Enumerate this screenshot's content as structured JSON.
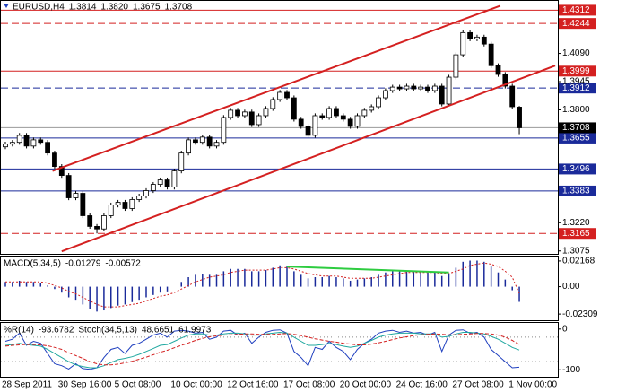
{
  "chart_data": [
    {
      "type": "candlestick",
      "title": "EURUSD,H4",
      "header_values": [
        "1.3814",
        "1.3820",
        "1.3675",
        "1.3708"
      ],
      "categories": [
        "28 Sep 2011",
        null,
        null,
        null,
        null,
        null,
        null,
        null,
        "30 Sep 16:00",
        null,
        null,
        null,
        null,
        null,
        null,
        null,
        "5 Oct 08:00",
        null,
        null,
        null,
        null,
        null,
        null,
        null,
        "10 Oct 00:00",
        null,
        null,
        null,
        null,
        null,
        null,
        null,
        "12 Oct 16:00",
        null,
        null,
        null,
        null,
        null,
        null,
        null,
        "17 Oct 08:00",
        null,
        null,
        null,
        null,
        null,
        null,
        null,
        "20 Oct 00:00",
        null,
        null,
        null,
        null,
        null,
        null,
        null,
        "24 Oct 16:00",
        null,
        null,
        null,
        null,
        null,
        null,
        null,
        "27 Oct 08:00",
        null,
        null,
        null,
        null,
        null,
        null,
        null,
        "1 Nov 00:00",
        null
      ],
      "open": [
        1.361,
        1.3624,
        1.3633,
        1.3669,
        1.3614,
        1.3646,
        1.3633,
        1.3578,
        1.3509,
        1.3463,
        1.3348,
        1.3371,
        1.3256,
        1.3201,
        1.3188,
        1.3256,
        1.3311,
        1.3325,
        1.3293,
        1.3339,
        1.3357,
        1.3385,
        1.3417,
        1.344,
        1.3403,
        1.3486,
        1.3578,
        1.3646,
        1.3633,
        1.366,
        1.3614,
        1.3633,
        1.3761,
        1.3798,
        1.377,
        1.3789,
        1.3724,
        1.377,
        1.3807,
        1.3853,
        1.389,
        1.3862,
        1.3752,
        1.3715,
        1.3669,
        1.377,
        1.3761,
        1.3807,
        1.377,
        1.3752,
        1.3715,
        1.377,
        1.3798,
        1.3816,
        1.3862,
        1.3899,
        1.3917,
        1.3908,
        1.3922,
        1.3908,
        1.3917,
        1.3899,
        1.3922,
        1.383,
        1.3968,
        1.4083,
        1.4197,
        1.4165,
        1.4174,
        1.4138,
        1.4027,
        1.3982,
        1.3922,
        1.3814
      ],
      "high": [
        1.3636,
        1.3645,
        1.3681,
        1.3681,
        1.3658,
        1.3658,
        1.3645,
        1.359,
        1.3521,
        1.3475,
        1.3383,
        1.3383,
        1.3268,
        1.3213,
        1.3268,
        1.3323,
        1.3337,
        1.3337,
        1.3351,
        1.3369,
        1.3397,
        1.3429,
        1.3452,
        1.3452,
        1.3498,
        1.359,
        1.3658,
        1.3658,
        1.3672,
        1.3672,
        1.3645,
        1.3773,
        1.381,
        1.381,
        1.3801,
        1.3801,
        1.3782,
        1.3819,
        1.3865,
        1.3902,
        1.3902,
        1.3874,
        1.3764,
        1.3727,
        1.3782,
        1.3782,
        1.3819,
        1.3819,
        1.3782,
        1.3764,
        1.3782,
        1.381,
        1.3828,
        1.3874,
        1.3911,
        1.3929,
        1.3929,
        1.3934,
        1.3934,
        1.3929,
        1.3929,
        1.3934,
        1.3934,
        1.398,
        1.4095,
        1.4209,
        1.4209,
        1.4186,
        1.4186,
        1.415,
        1.4039,
        1.3994,
        1.3934,
        1.382
      ],
      "low": [
        1.3598,
        1.3612,
        1.3621,
        1.3602,
        1.3602,
        1.3621,
        1.3566,
        1.3497,
        1.3451,
        1.3336,
        1.3336,
        1.3244,
        1.3189,
        1.3165,
        1.3176,
        1.3244,
        1.3299,
        1.3281,
        1.3281,
        1.3327,
        1.3345,
        1.3373,
        1.3405,
        1.3391,
        1.3391,
        1.3474,
        1.3566,
        1.3621,
        1.3621,
        1.3602,
        1.3602,
        1.3621,
        1.3749,
        1.3758,
        1.3758,
        1.3712,
        1.3712,
        1.3758,
        1.3795,
        1.3841,
        1.385,
        1.374,
        1.3703,
        1.3657,
        1.3657,
        1.3749,
        1.3749,
        1.3758,
        1.374,
        1.3703,
        1.3703,
        1.3758,
        1.3786,
        1.3804,
        1.385,
        1.3887,
        1.3896,
        1.3896,
        1.3896,
        1.3896,
        1.3887,
        1.3887,
        1.3818,
        1.3818,
        1.3956,
        1.4071,
        1.4153,
        1.4153,
        1.4126,
        1.4015,
        1.397,
        1.391,
        1.3804,
        1.3675
      ],
      "close": [
        1.3624,
        1.3633,
        1.3669,
        1.3614,
        1.3646,
        1.3633,
        1.3578,
        1.3509,
        1.3463,
        1.3348,
        1.3371,
        1.3256,
        1.3201,
        1.3188,
        1.3256,
        1.3311,
        1.3325,
        1.3293,
        1.3339,
        1.3357,
        1.3385,
        1.3417,
        1.344,
        1.3403,
        1.3486,
        1.3578,
        1.3646,
        1.3633,
        1.366,
        1.3614,
        1.3633,
        1.3761,
        1.3798,
        1.377,
        1.3789,
        1.3724,
        1.377,
        1.3807,
        1.3853,
        1.389,
        1.3862,
        1.3752,
        1.3715,
        1.3669,
        1.377,
        1.3761,
        1.3807,
        1.377,
        1.3752,
        1.3715,
        1.377,
        1.3798,
        1.3816,
        1.3862,
        1.3899,
        1.3917,
        1.3908,
        1.3922,
        1.3908,
        1.3917,
        1.3899,
        1.3922,
        1.383,
        1.3968,
        1.4083,
        1.4197,
        1.4165,
        1.4174,
        1.4138,
        1.4027,
        1.3982,
        1.3922,
        1.3816,
        1.3708
      ],
      "bull_color": "#ffffff",
      "bear_color": "#000000",
      "ylim": [
        1.306,
        1.436
      ],
      "yticks": [
        {
          "value": 1.409,
          "label": "1.4090"
        },
        {
          "value": 1.3945,
          "label": "1.3945"
        },
        {
          "value": 1.38,
          "label": "1.3800"
        },
        {
          "value": 1.322,
          "label": "1.3220"
        },
        {
          "value": 1.3075,
          "label": "1.3075"
        }
      ],
      "levels": [
        {
          "value": 1.4312,
          "label": "1.4312",
          "color": "#d42020",
          "dashed": false
        },
        {
          "value": 1.4244,
          "label": "1.4244",
          "color": "#d42020",
          "dashed": true
        },
        {
          "value": 1.3999,
          "label": "1.3999",
          "color": "#d42020",
          "dashed": false
        },
        {
          "value": 1.3912,
          "label": "1.3912",
          "color": "#1a2a9a",
          "dashed": true
        },
        {
          "value": 1.3655,
          "label": "1.3655",
          "color": "#1a2a9a",
          "dashed": false
        },
        {
          "value": 1.3496,
          "label": "1.3496",
          "color": "#1a2a9a",
          "dashed": false
        },
        {
          "value": 1.3383,
          "label": "1.3383",
          "color": "#1a2a9a",
          "dashed": false
        },
        {
          "value": 1.3165,
          "label": "1.3165",
          "color": "#d42020",
          "dashed": true
        }
      ],
      "current_price": {
        "value": 1.3708,
        "label": "1.3708",
        "color": "#000000"
      },
      "trendlines": [
        {
          "color": "#d42020",
          "points": [
            [
              6.7,
              1.3486
            ],
            [
              70.3,
              1.4335
            ]
          ]
        },
        {
          "color": "#d42020",
          "points": [
            [
              8,
              1.3073
            ],
            [
              78.1,
              1.4027
            ]
          ]
        }
      ]
    },
    {
      "type": "macd",
      "title": "MACD(5,34,5)",
      "series": [
        {
          "color": "#1a2a9a",
          "style": "histogram",
          "values": [
            0.004,
            0.004,
            0.005,
            0.004,
            0.004,
            0.003,
            0.001,
            -0.002,
            -0.005,
            -0.009,
            -0.011,
            -0.015,
            -0.019,
            -0.021,
            -0.02,
            -0.018,
            -0.016,
            -0.015,
            -0.013,
            -0.011,
            -0.009,
            -0.007,
            -0.005,
            -0.004,
            0.0,
            0.004,
            0.008,
            0.01,
            0.011,
            0.01,
            0.01,
            0.013,
            0.015,
            0.015,
            0.015,
            0.013,
            0.013,
            0.014,
            0.016,
            0.018,
            0.017,
            0.013,
            0.01,
            0.007,
            0.008,
            0.008,
            0.009,
            0.008,
            0.007,
            0.005,
            0.006,
            0.007,
            0.008,
            0.01,
            0.012,
            0.013,
            0.013,
            0.013,
            0.013,
            0.012,
            0.012,
            0.012,
            0.009,
            0.011,
            0.016,
            0.021,
            0.022,
            0.022,
            0.021,
            0.017,
            0.012,
            0.006,
            -0.003,
            -0.01279
          ]
        },
        {
          "color": "#d42020",
          "style": "dotted",
          "values": [
            0.004,
            0.004,
            0.004,
            0.004,
            0.004,
            0.004,
            0.003,
            0.001,
            -0.001,
            -0.004,
            -0.006,
            -0.009,
            -0.012,
            -0.015,
            -0.017,
            -0.017,
            -0.017,
            -0.016,
            -0.015,
            -0.014,
            -0.012,
            -0.01,
            -0.008,
            -0.007,
            -0.005,
            -0.002,
            0.001,
            0.004,
            0.006,
            0.008,
            0.009,
            0.01,
            0.012,
            0.013,
            0.014,
            0.014,
            0.014,
            0.014,
            0.015,
            0.016,
            0.016,
            0.015,
            0.013,
            0.011,
            0.01,
            0.009,
            0.009,
            0.009,
            0.008,
            0.007,
            0.007,
            0.007,
            0.007,
            0.008,
            0.009,
            0.01,
            0.011,
            0.012,
            0.012,
            0.012,
            0.012,
            0.012,
            0.011,
            0.011,
            0.013,
            0.015,
            0.018,
            0.019,
            0.02,
            0.019,
            0.017,
            0.013,
            0.008,
            -0.00572
          ]
        }
      ],
      "ylim": [
        -0.0283,
        0.0254
      ],
      "yticks": [
        0.02168,
        {
          "value": 0,
          "label": "0.00"
        },
        -0.02309
      ],
      "trendlines": [
        {
          "color": "#2ecc40",
          "points": [
            [
              40,
              0.017
            ],
            [
              63,
              0.012
            ]
          ]
        }
      ]
    },
    {
      "type": "oscillator",
      "title": "%R(14)",
      "title2": "Stoch(34,5,13)",
      "series": [
        {
          "color": "#1f3fbf",
          "axis": "y",
          "dashed": false,
          "values": [
            -30,
            -25,
            -10,
            -40,
            -30,
            -35,
            -60,
            -85,
            -90,
            -98,
            -85,
            -97,
            -99,
            -95,
            -70,
            -50,
            -45,
            -60,
            -40,
            -35,
            -25,
            -15,
            -10,
            -20,
            -5,
            -3,
            -5,
            -10,
            -8,
            -25,
            -20,
            -5,
            -3,
            -15,
            -10,
            -35,
            -20,
            -8,
            -3,
            -2,
            -10,
            -55,
            -70,
            -90,
            -45,
            -50,
            -30,
            -45,
            -55,
            -75,
            -50,
            -35,
            -25,
            -10,
            -5,
            -3,
            -8,
            -5,
            -10,
            -8,
            -15,
            -8,
            -55,
            -15,
            -3,
            -2,
            -10,
            -8,
            -20,
            -50,
            -65,
            -80,
            -95,
            -93.6782
          ]
        },
        {
          "color": "#20a8a0",
          "axis": "y2",
          "dashed": false,
          "values": [
            60,
            62,
            65,
            62,
            60,
            58,
            50,
            40,
            30,
            20,
            12,
            8,
            5,
            5,
            10,
            18,
            25,
            28,
            32,
            38,
            45,
            52,
            60,
            62,
            70,
            78,
            85,
            88,
            88,
            85,
            85,
            88,
            90,
            90,
            88,
            85,
            85,
            88,
            90,
            92,
            90,
            80,
            70,
            60,
            60,
            62,
            65,
            62,
            58,
            55,
            58,
            65,
            72,
            80,
            85,
            88,
            90,
            90,
            90,
            88,
            88,
            88,
            80,
            82,
            88,
            92,
            92,
            90,
            88,
            82,
            75,
            65,
            55,
            48.6651
          ]
        },
        {
          "color": "#d42020",
          "axis": "y2",
          "dashed": true,
          "values": [
            58,
            60,
            61,
            62,
            62,
            61,
            59,
            55,
            50,
            42,
            35,
            28,
            20,
            15,
            12,
            12,
            14,
            17,
            21,
            26,
            31,
            37,
            43,
            48,
            54,
            60,
            66,
            72,
            77,
            81,
            83,
            85,
            86,
            87,
            88,
            88,
            87,
            87,
            87,
            88,
            89,
            87,
            84,
            80,
            76,
            73,
            70,
            68,
            65,
            63,
            61,
            61,
            63,
            66,
            70,
            74,
            78,
            81,
            84,
            86,
            87,
            88,
            87,
            86,
            86,
            87,
            88,
            89,
            89,
            88,
            85,
            80,
            72,
            61.9973
          ]
        }
      ],
      "ylim": [
        -117,
        15
      ],
      "y2lim": [
        -17,
        115
      ],
      "yticks": [
        0,
        -100
      ],
      "levels": [
        -20,
        -80
      ]
    }
  ]
}
